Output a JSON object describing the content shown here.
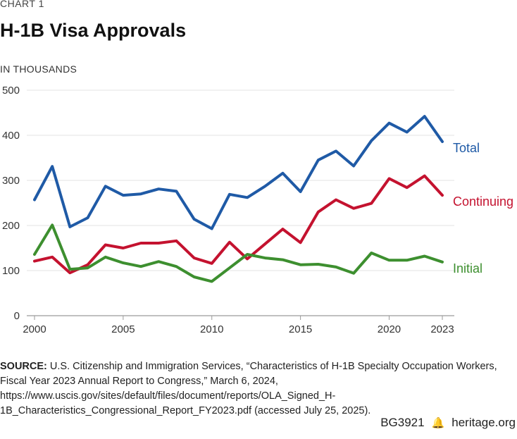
{
  "header": {
    "chart_label": "CHART 1",
    "title": "H-1B Visa Approvals",
    "units": "IN THOUSANDS"
  },
  "source": {
    "label": "SOURCE:",
    "text": "U.S. Citizenship and Immigration Services, “Characteristics of H-1B Specialty Occupation Workers, Fiscal Year 2023 Annual Report to Congress,” March 6, 2024, https://www.uscis.gov/sites/default/files/document/reports/OLA_Signed_H-1B_Characteristics_Congressional_Report_FY2023.pdf (accessed July 25, 2025)."
  },
  "footer": {
    "code": "BG3921",
    "site": "heritage.org"
  },
  "colors": {
    "total": "#1f5aa6",
    "continuing": "#c4122f",
    "initial": "#3d8f2f",
    "grid": "#e3e3e3",
    "axis": "#9a9a9a"
  },
  "chart_data": {
    "type": "line",
    "title": "H-1B Visa Approvals",
    "ylabel": "IN THOUSANDS",
    "xlabel": "",
    "x": [
      2000,
      2001,
      2002,
      2003,
      2004,
      2005,
      2006,
      2007,
      2008,
      2009,
      2010,
      2011,
      2012,
      2013,
      2014,
      2015,
      2016,
      2017,
      2018,
      2019,
      2020,
      2021,
      2022,
      2023
    ],
    "xlim": [
      2000,
      2023
    ],
    "ylim": [
      0,
      500
    ],
    "x_ticks": [
      2000,
      2005,
      2010,
      2015,
      2020,
      2023
    ],
    "y_ticks": [
      0,
      100,
      200,
      300,
      400,
      500
    ],
    "grid": true,
    "series": [
      {
        "name": "Total",
        "key": "total",
        "values": [
          257,
          331,
          197,
          217,
          287,
          267,
          270,
          281,
          276,
          214,
          193,
          269,
          262,
          287,
          316,
          275,
          345,
          365,
          332,
          388,
          427,
          407,
          442,
          386
        ]
      },
      {
        "name": "Continuing",
        "key": "continuing",
        "values": [
          121,
          130,
          95,
          113,
          157,
          150,
          161,
          161,
          166,
          128,
          116,
          163,
          126,
          159,
          192,
          162,
          230,
          257,
          238,
          249,
          304,
          284,
          310,
          267
        ]
      },
      {
        "name": "Initial",
        "key": "initial",
        "values": [
          136,
          201,
          103,
          106,
          130,
          117,
          109,
          120,
          109,
          86,
          76,
          106,
          136,
          128,
          124,
          113,
          114,
          108,
          94,
          139,
          123,
          123,
          132,
          119
        ]
      }
    ]
  }
}
